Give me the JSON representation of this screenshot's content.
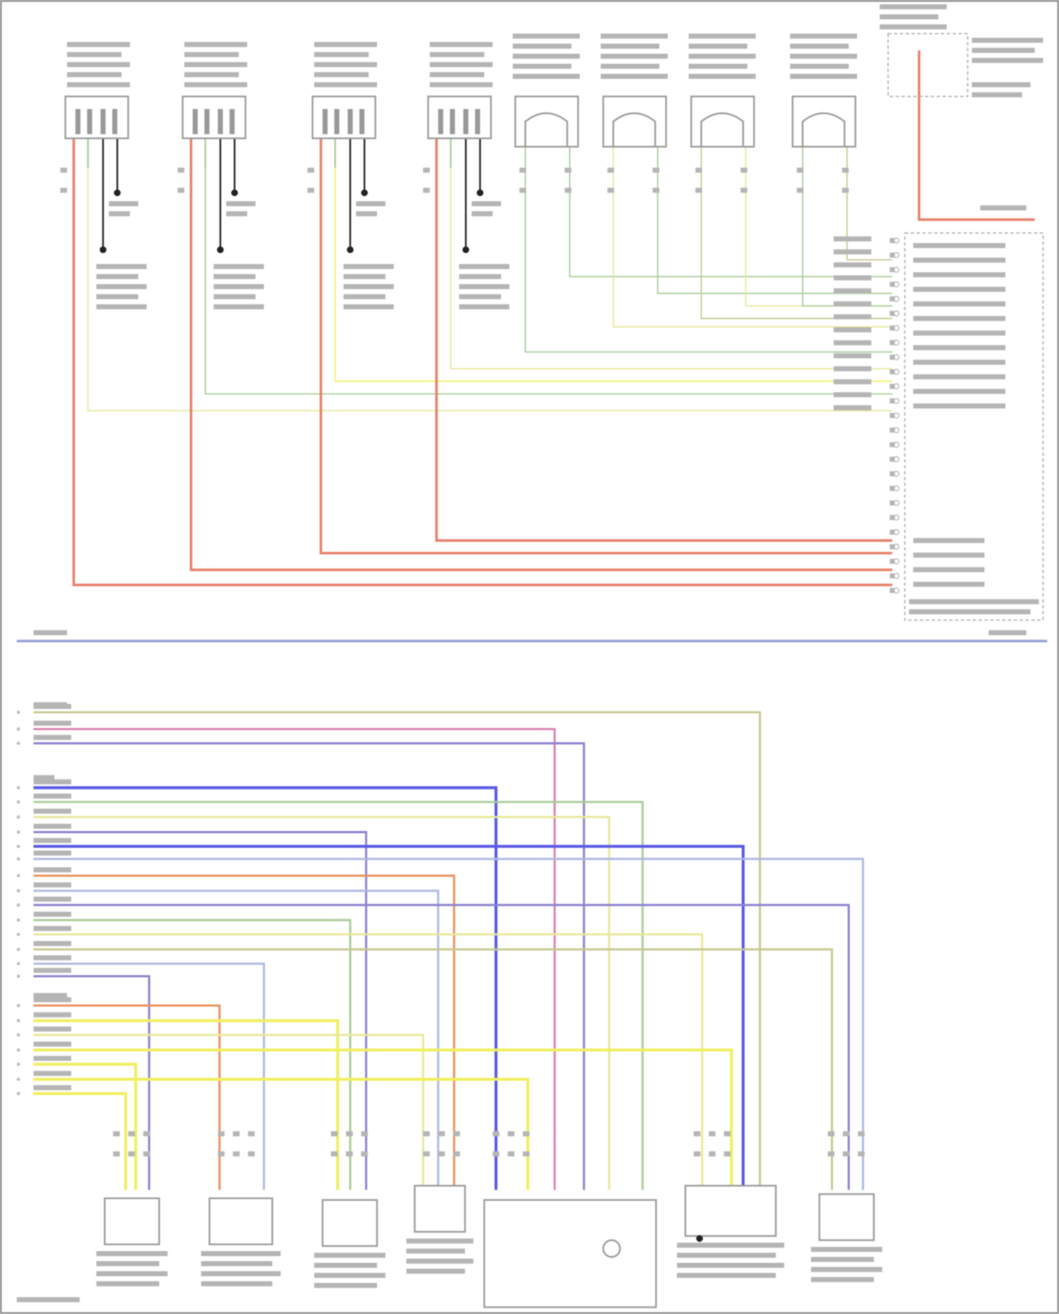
{
  "diagram": {
    "type": "wiring-diagram",
    "text_legible": false,
    "wire_colors": {
      "red": "#e8806a",
      "pink": "#d97fb0",
      "blue": "#5a5ae6",
      "purple": "#8a80d0",
      "yellow": "#f0ef60",
      "light_yellow": "#e8e89a",
      "green": "#a8cc98",
      "olive": "#c8c890",
      "gray_blue": "#b0b8e0",
      "orange": "#e8905a",
      "black": "#222222"
    },
    "sections": {
      "top": {
        "ignition_coils": 4,
        "fuel_injectors": 4,
        "relay_box": 1,
        "control_module_connector": 1
      },
      "bottom": {
        "connector_pins": 32,
        "sensors": 7
      }
    }
  }
}
